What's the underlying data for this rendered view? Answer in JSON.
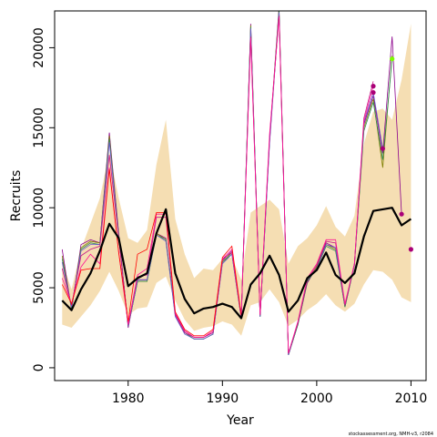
{
  "chart_data": {
    "type": "line",
    "title": "",
    "xlabel": "Year",
    "ylabel": "Recruits",
    "xlim": [
      1972.2,
      2011.6
    ],
    "ylim": [
      -800,
      22300
    ],
    "x_ticks": [
      1980,
      1990,
      2000,
      2010
    ],
    "y_ticks": [
      0,
      5000,
      10000,
      15000,
      20000
    ],
    "x_tick_labels": [
      "1980",
      "1990",
      "2000",
      "2010"
    ],
    "y_tick_labels": [
      "0",
      "5000",
      "10000",
      "15000",
      "20000"
    ],
    "grid": false,
    "legend": "none",
    "credit": "stockassessment.org, NMH-v3, r2084",
    "colors": {
      "band": "#f5deb3",
      "estimate": "#000000",
      "retro": [
        "#8b008b",
        "#7f7f00",
        "#2e8b57",
        "#6a5acd",
        "#c71585",
        "#ff1493",
        "#ff0000"
      ],
      "endpoint": "#aa0077",
      "endpoint_green": "#7cfc00"
    },
    "band": {
      "x": [
        1973,
        1974,
        1975,
        1976,
        1977,
        1978,
        1979,
        1980,
        1981,
        1982,
        1983,
        1984,
        1985,
        1986,
        1987,
        1988,
        1989,
        1990,
        1991,
        1992,
        1993,
        1994,
        1995,
        1996,
        1997,
        1998,
        1999,
        2000,
        2001,
        2002,
        2003,
        2004,
        2005,
        2006,
        2007,
        2008,
        2009,
        2010
      ],
      "lower": [
        2700,
        2500,
        3200,
        3900,
        4800,
        6000,
        4800,
        3300,
        3700,
        3800,
        5300,
        5700,
        4200,
        3000,
        2300,
        2500,
        2600,
        2900,
        2700,
        2000,
        3900,
        4100,
        4900,
        4100,
        2600,
        3000,
        3600,
        4000,
        4600,
        3900,
        3500,
        4000,
        5200,
        6100,
        6000,
        5500,
        4400,
        4100
      ],
      "upper": [
        6600,
        4900,
        7400,
        9000,
        10600,
        13500,
        10600,
        8100,
        7800,
        8600,
        12700,
        15500,
        9300,
        7100,
        5600,
        6200,
        6100,
        6800,
        6900,
        5500,
        9700,
        10100,
        10500,
        9900,
        6500,
        7600,
        8100,
        8900,
        10100,
        8800,
        8200,
        9500,
        14000,
        16000,
        16200,
        15500,
        18000,
        21500
      ]
    },
    "estimate": {
      "name": "",
      "x": [
        1973,
        1974,
        1975,
        1976,
        1977,
        1978,
        1979,
        1980,
        1981,
        1982,
        1983,
        1984,
        1985,
        1986,
        1987,
        1988,
        1989,
        1990,
        1991,
        1992,
        1993,
        1994,
        1995,
        1996,
        1997,
        1998,
        1999,
        2000,
        2001,
        2002,
        2003,
        2004,
        2005,
        2006,
        2007,
        2008,
        2009,
        2010
      ],
      "y": [
        4200,
        3600,
        4900,
        5900,
        7300,
        9000,
        8100,
        5100,
        5600,
        5900,
        8400,
        9900,
        5900,
        4300,
        3400,
        3700,
        3800,
        4000,
        3800,
        3100,
        5200,
        5900,
        7000,
        5800,
        3500,
        4200,
        5600,
        6100,
        7200,
        5800,
        5300,
        5900,
        8200,
        9800,
        9900,
        10000,
        8900,
        9300
      ]
    },
    "retro_x": [
      1973,
      1974,
      1975,
      1976,
      1977,
      1978,
      1979,
      1980,
      1981,
      1982,
      1983,
      1984,
      1985,
      1986,
      1987,
      1988,
      1989,
      1990,
      1991,
      1992,
      1993,
      1994,
      1995,
      1996,
      1997,
      1998,
      1999,
      2000,
      2001,
      2002,
      2003,
      2004,
      2005,
      2006,
      2007,
      2008,
      2009,
      2010
    ],
    "series": [
      {
        "name": "",
        "values": [
          7400,
          3600,
          7700,
          8000,
          7800,
          14700,
          8400,
          2500,
          5500,
          5500,
          8400,
          8100,
          3400,
          2300,
          1900,
          1900,
          2200,
          6700,
          7300,
          3100,
          21500,
          3200,
          14300,
          22500,
          800,
          2700,
          5300,
          6300,
          7800,
          7500,
          3800,
          6500,
          15200,
          17000,
          13400,
          20700,
          9600,
          null
        ]
      },
      {
        "name": "",
        "values": [
          7000,
          3700,
          7500,
          7900,
          7800,
          14500,
          8300,
          2600,
          5400,
          5400,
          8400,
          8000,
          3300,
          2200,
          1800,
          1800,
          2100,
          6600,
          7200,
          3100,
          21400,
          3200,
          14200,
          22400,
          800,
          2700,
          5400,
          6300,
          7700,
          7400,
          3800,
          6400,
          15000,
          16800,
          12500,
          19500,
          null,
          null
        ]
      },
      {
        "name": "",
        "values": [
          6800,
          3700,
          7400,
          7800,
          7700,
          14300,
          8200,
          2600,
          5400,
          5400,
          8300,
          8000,
          3300,
          2200,
          1800,
          1800,
          2100,
          6600,
          7100,
          3100,
          21300,
          3200,
          14100,
          22300,
          800,
          2700,
          5400,
          6200,
          7600,
          7300,
          3800,
          6400,
          14800,
          16600,
          13000,
          19300,
          null,
          null
        ]
      },
      {
        "name": "",
        "values": [
          6600,
          3800,
          7300,
          7700,
          7700,
          14100,
          8200,
          2600,
          5500,
          5500,
          8300,
          7900,
          3200,
          2100,
          1800,
          1800,
          2100,
          6500,
          7100,
          3100,
          21200,
          3200,
          14000,
          22200,
          800,
          2800,
          5500,
          6200,
          7700,
          7500,
          3900,
          6400,
          15300,
          17200,
          13700,
          null,
          null,
          null
        ]
      },
      {
        "name": "",
        "values": [
          6200,
          3900,
          7000,
          7400,
          7600,
          13300,
          8100,
          2700,
          5700,
          5800,
          9400,
          9400,
          3300,
          2200,
          1900,
          1900,
          2200,
          6800,
          7200,
          3200,
          20700,
          3300,
          14400,
          22000,
          900,
          2800,
          5500,
          6400,
          7900,
          7800,
          3900,
          6500,
          15600,
          17900,
          null,
          null,
          null,
          null
        ]
      },
      {
        "name": "",
        "values": [
          5600,
          4000,
          6300,
          7100,
          6500,
          12500,
          7200,
          2700,
          5800,
          6200,
          9600,
          9600,
          3400,
          2300,
          1900,
          1900,
          2300,
          6800,
          7400,
          3200,
          20600,
          3300,
          14600,
          21900,
          900,
          2900,
          5600,
          6500,
          8000,
          8000,
          4000,
          6500,
          15400,
          17600,
          null,
          null,
          null,
          null
        ]
      },
      {
        "name": "",
        "values": [
          5200,
          4000,
          6100,
          6200,
          6200,
          12400,
          7200,
          2900,
          7100,
          7400,
          9700,
          9700,
          3500,
          2400,
          2000,
          2000,
          2400,
          6900,
          7600,
          3300,
          null,
          null,
          null,
          null,
          null,
          null,
          null,
          null,
          null,
          null,
          null,
          null,
          null,
          null,
          null,
          null,
          null,
          null
        ]
      }
    ],
    "endpoints": [
      {
        "x": 2010,
        "y": 7400,
        "color_key": "retro"
      },
      {
        "x": 2009,
        "y": 9600,
        "color_key": "retro"
      },
      {
        "x": 2008,
        "y": 19300,
        "color_key": "green"
      },
      {
        "x": 2007,
        "y": 13700,
        "color_key": "retro"
      },
      {
        "x": 2006,
        "y": 17200,
        "color_key": "retro"
      },
      {
        "x": 2006,
        "y": 17600,
        "color_key": "retro"
      }
    ]
  }
}
